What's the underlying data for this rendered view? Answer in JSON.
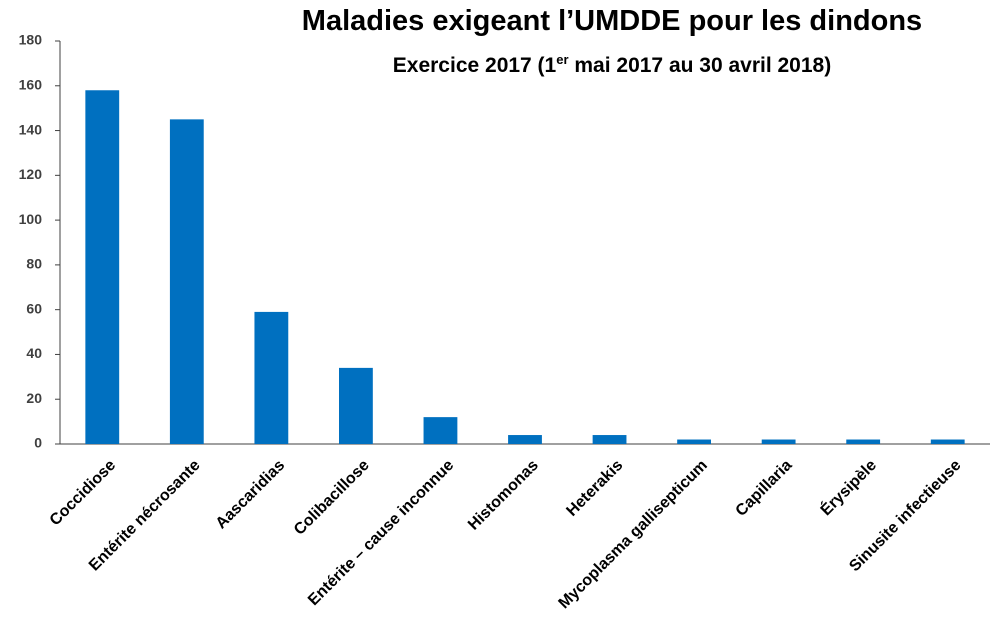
{
  "chart_data": {
    "type": "bar",
    "title": "Maladies exigeant l’UMDDE pour les dindons",
    "subtitle": [
      "Exercice 2017 (1",
      "er",
      " mai 2017 au 30 avril 2018)"
    ],
    "categories": [
      "Coccidiose",
      "Entérite nécrosante",
      "Aascaridias",
      "Colibacillose",
      "Entérite – cause inconnue",
      "Histomonas",
      "Heterakis",
      "Mycoplasma gallisepticum",
      "Capillaria",
      "Érysipèle",
      "Sinusite infectieuse"
    ],
    "values": [
      158,
      145,
      59,
      34,
      12,
      4,
      4,
      2,
      2,
      2,
      2
    ],
    "color": "#0070c0",
    "ylim": [
      0,
      180
    ],
    "yticks": [
      0,
      20,
      40,
      60,
      80,
      100,
      120,
      140,
      160,
      180
    ],
    "grid": false
  }
}
